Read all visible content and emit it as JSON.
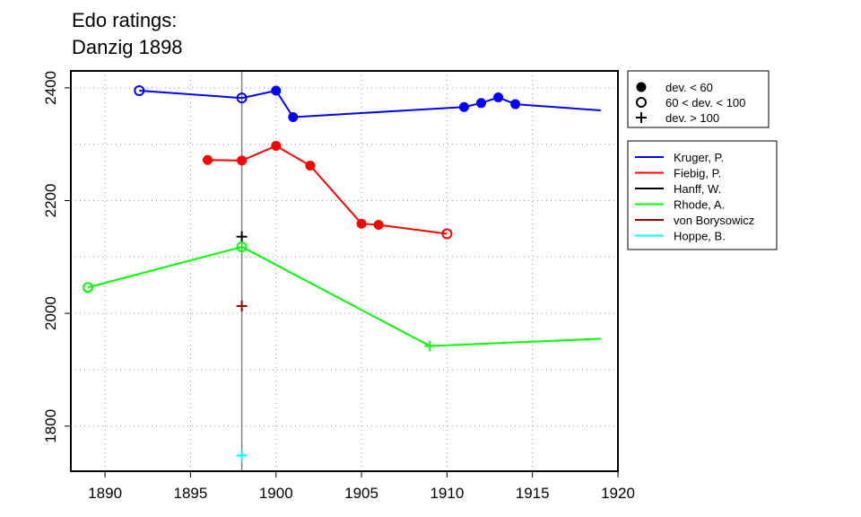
{
  "chart_data": {
    "type": "line",
    "title": [
      "Edo ratings:",
      "Danzig 1898"
    ],
    "xlabel": "",
    "ylabel": "",
    "xlim": [
      1888,
      1920
    ],
    "ylim": [
      1720,
      2430
    ],
    "x_ticks": [
      1890,
      1895,
      1900,
      1905,
      1910,
      1915,
      1920
    ],
    "y_ticks": [
      1800,
      2000,
      2200,
      2400
    ],
    "vline": 1898,
    "grid": "dotted",
    "marker_legend": [
      {
        "label": "dev. < 60",
        "marker": "filled"
      },
      {
        "label": "60 < dev. < 100",
        "marker": "open"
      },
      {
        "label": "dev. > 100",
        "marker": "plus"
      }
    ],
    "series": [
      {
        "name": "Kruger, P.",
        "color": "#0000ff",
        "points": [
          [
            1892,
            2395,
            "open"
          ],
          [
            1898,
            2382,
            "open"
          ],
          [
            1900,
            2395,
            "filled"
          ],
          [
            1901,
            2348,
            "filled"
          ],
          [
            1911,
            2366,
            "filled"
          ],
          [
            1912,
            2373,
            "filled"
          ],
          [
            1913,
            2383,
            "filled"
          ],
          [
            1914,
            2371,
            "filled"
          ],
          [
            1919,
            2360,
            null
          ]
        ]
      },
      {
        "name": "Fiebig, P.",
        "color": "#ff0000",
        "points": [
          [
            1896,
            2272,
            "filled"
          ],
          [
            1898,
            2271,
            "filled"
          ],
          [
            1900,
            2297,
            "filled"
          ],
          [
            1902,
            2262,
            "filled"
          ],
          [
            1905,
            2159,
            "filled"
          ],
          [
            1906,
            2157,
            "filled"
          ],
          [
            1910,
            2141,
            "open"
          ]
        ]
      },
      {
        "name": "Hanff, W.",
        "color": "#000000",
        "points": [
          [
            1898,
            2136,
            "plus"
          ]
        ]
      },
      {
        "name": "Rhode, A.",
        "color": "#00ff00",
        "points": [
          [
            1889,
            2046,
            "open"
          ],
          [
            1898,
            2118,
            "open"
          ],
          [
            1909,
            1942,
            "plus"
          ],
          [
            1919,
            1955,
            null
          ]
        ]
      },
      {
        "name": "von Borysowicz",
        "color": "#990000",
        "points": [
          [
            1898,
            2013,
            "plus"
          ]
        ]
      },
      {
        "name": "Hoppe, B.",
        "color": "#00ffff",
        "points": [
          [
            1898,
            1748,
            "plus"
          ]
        ]
      }
    ]
  }
}
